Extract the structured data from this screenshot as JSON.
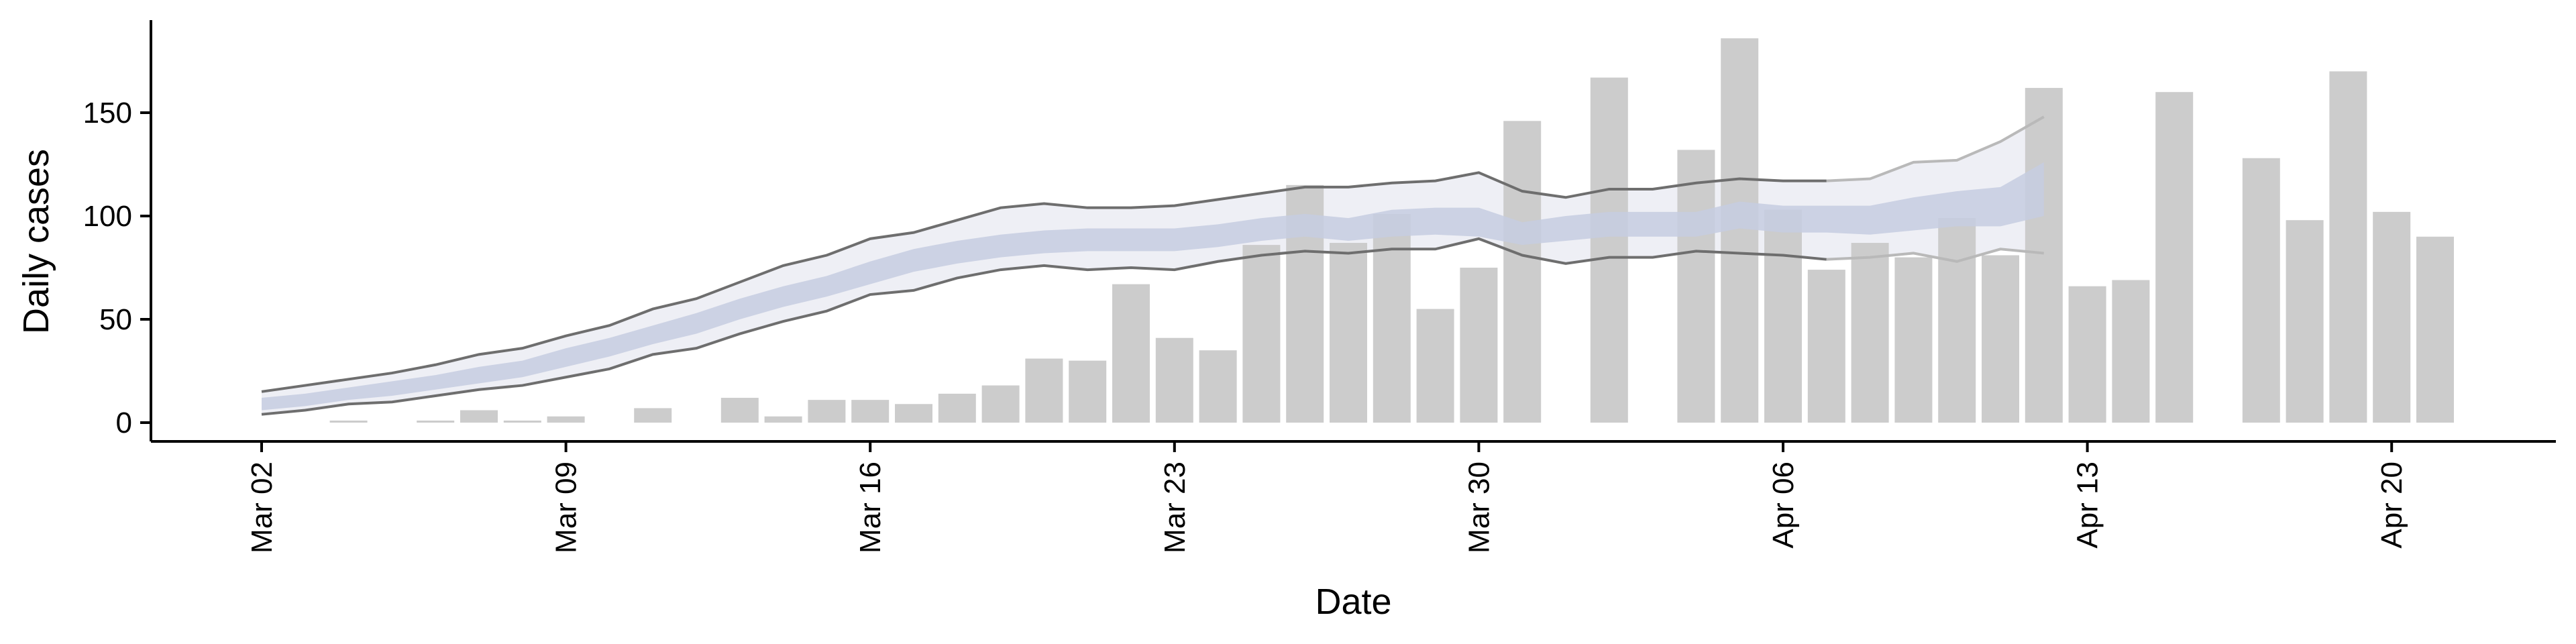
{
  "chart_data": {
    "type": "bar",
    "title": "",
    "xlabel": "Date",
    "ylabel": "Daily cases",
    "ylim": [
      -8,
      195
    ],
    "yticks": [
      0,
      50,
      100,
      150
    ],
    "x_start": "2020-03-02",
    "xticks": [
      {
        "label": "Mar 02",
        "date": "2020-03-02"
      },
      {
        "label": "Mar 09",
        "date": "2020-03-09"
      },
      {
        "label": "Mar 16",
        "date": "2020-03-16"
      },
      {
        "label": "Mar 23",
        "date": "2020-03-23"
      },
      {
        "label": "Mar 30",
        "date": "2020-03-30"
      },
      {
        "label": "Apr 06",
        "date": "2020-04-06"
      },
      {
        "label": "Apr 13",
        "date": "2020-04-13"
      },
      {
        "label": "Apr 20",
        "date": "2020-04-20"
      }
    ],
    "grid": false,
    "colors": {
      "bars": "#cccccc",
      "outer_band": "#eeeff5",
      "inner_band": "#c5cde0",
      "bound_lines": "#6e6e6e",
      "bound_lines_light": "#b9b9b9"
    },
    "series": [
      {
        "kind": "bar",
        "dates": [
          "2020-03-04",
          "2020-03-06",
          "2020-03-07",
          "2020-03-08",
          "2020-03-09",
          "2020-03-11",
          "2020-03-13",
          "2020-03-14",
          "2020-03-15",
          "2020-03-16",
          "2020-03-17",
          "2020-03-18",
          "2020-03-19",
          "2020-03-20",
          "2020-03-21",
          "2020-03-22",
          "2020-03-23",
          "2020-03-24",
          "2020-03-25",
          "2020-03-26",
          "2020-03-27",
          "2020-03-28",
          "2020-03-29",
          "2020-03-30",
          "2020-03-31",
          "2020-04-02",
          "2020-04-04",
          "2020-04-05",
          "2020-04-06",
          "2020-04-07",
          "2020-04-08",
          "2020-04-09",
          "2020-04-10",
          "2020-04-11",
          "2020-04-12",
          "2020-04-13",
          "2020-04-14",
          "2020-04-15",
          "2020-04-17",
          "2020-04-18",
          "2020-04-19",
          "2020-04-20",
          "2020-04-21"
        ],
        "values": [
          1,
          1,
          6,
          1,
          3,
          7,
          12,
          3,
          11,
          11,
          9,
          14,
          18,
          31,
          30,
          67,
          41,
          35,
          86,
          115,
          87,
          101,
          55,
          75,
          146,
          167,
          132,
          186,
          103,
          74,
          87,
          80,
          99,
          81,
          162,
          66,
          69,
          160,
          128,
          98,
          170,
          102,
          90
        ]
      },
      {
        "kind": "band",
        "dates": [
          "2020-03-02",
          "2020-03-03",
          "2020-03-04",
          "2020-03-05",
          "2020-03-06",
          "2020-03-07",
          "2020-03-08",
          "2020-03-09",
          "2020-03-10",
          "2020-03-11",
          "2020-03-12",
          "2020-03-13",
          "2020-03-14",
          "2020-03-15",
          "2020-03-16",
          "2020-03-17",
          "2020-03-18",
          "2020-03-19",
          "2020-03-20",
          "2020-03-21",
          "2020-03-22",
          "2020-03-23",
          "2020-03-24",
          "2020-03-25",
          "2020-03-26",
          "2020-03-27",
          "2020-03-28",
          "2020-03-29",
          "2020-03-30",
          "2020-03-31",
          "2020-04-01",
          "2020-04-02",
          "2020-04-03",
          "2020-04-04",
          "2020-04-05",
          "2020-04-06",
          "2020-04-07",
          "2020-04-08",
          "2020-04-09",
          "2020-04-10",
          "2020-04-11",
          "2020-04-12"
        ],
        "outer_upper": [
          15,
          18,
          21,
          24,
          28,
          33,
          36,
          42,
          47,
          55,
          60,
          68,
          76,
          81,
          89,
          92,
          98,
          104,
          106,
          104,
          104,
          105,
          108,
          111,
          114,
          114,
          116,
          117,
          121,
          112,
          109,
          113,
          113,
          116,
          118,
          117,
          117,
          118,
          126,
          127,
          136,
          148
        ],
        "outer_lower": [
          4,
          6,
          9,
          10,
          13,
          16,
          18,
          22,
          26,
          33,
          36,
          43,
          49,
          54,
          62,
          64,
          70,
          74,
          76,
          74,
          75,
          74,
          78,
          81,
          83,
          82,
          84,
          84,
          89,
          81,
          77,
          80,
          80,
          83,
          82,
          81,
          79,
          80,
          82,
          78,
          84,
          82
        ],
        "inner_upper": [
          12,
          14,
          17,
          20,
          23,
          27,
          30,
          36,
          41,
          47,
          53,
          60,
          66,
          71,
          78,
          84,
          88,
          91,
          93,
          94,
          94,
          94,
          96,
          99,
          101,
          99,
          103,
          104,
          104,
          97,
          100,
          102,
          102,
          102,
          107,
          105,
          105,
          105,
          109,
          112,
          114,
          126
        ],
        "inner_lower": [
          6,
          8,
          11,
          13,
          16,
          19,
          22,
          27,
          32,
          38,
          43,
          50,
          56,
          61,
          67,
          73,
          77,
          80,
          82,
          83,
          83,
          83,
          85,
          88,
          90,
          88,
          90,
          91,
          90,
          86,
          88,
          90,
          90,
          90,
          94,
          92,
          92,
          91,
          93,
          95,
          95,
          100
        ]
      }
    ]
  }
}
